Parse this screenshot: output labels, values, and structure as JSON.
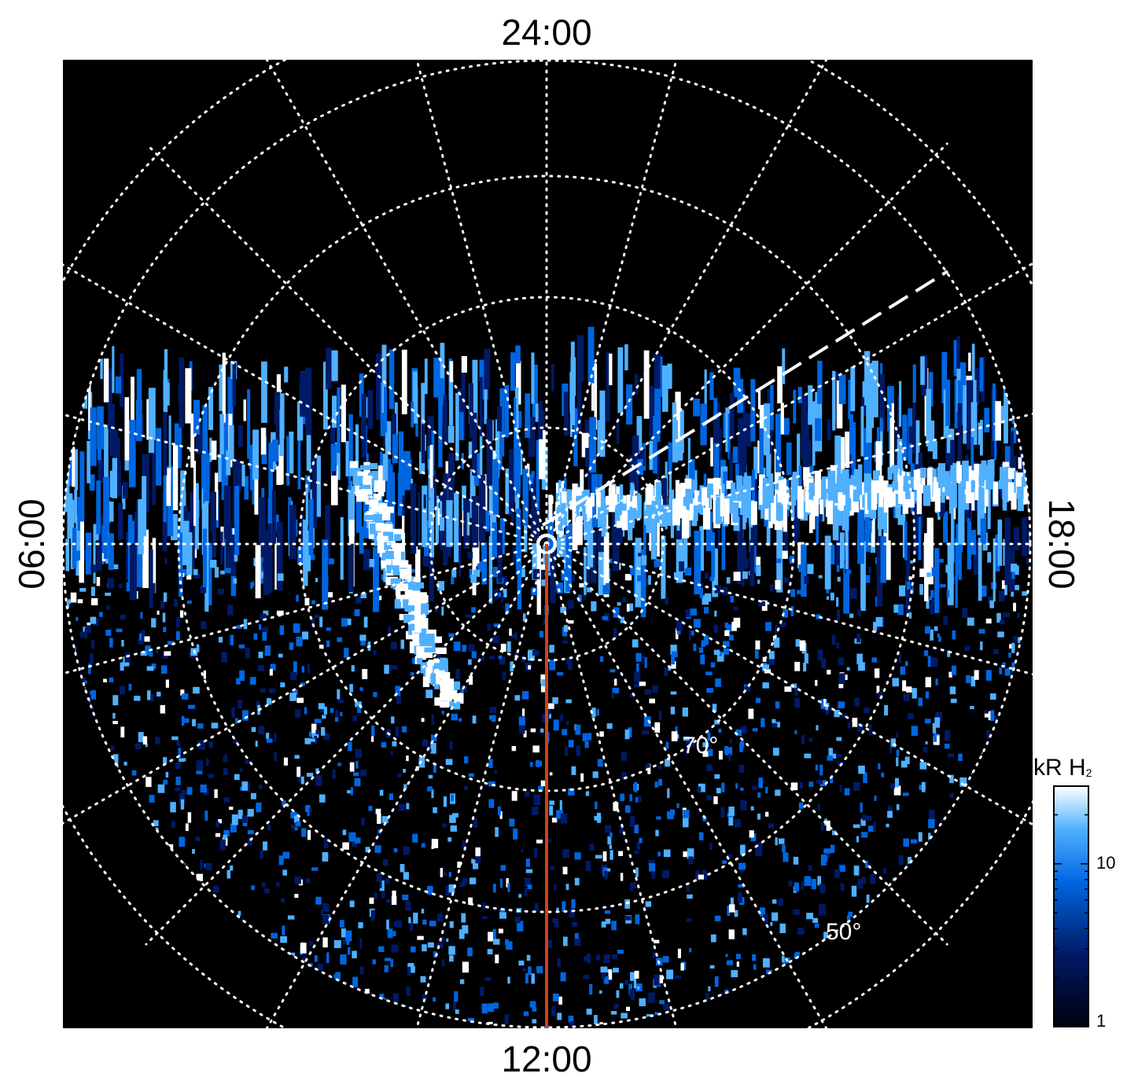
{
  "time_labels": {
    "top": "24:00",
    "bottom": "12:00",
    "left": "06:00",
    "right": "18:00"
  },
  "latitude_labels": [
    {
      "text": "70°",
      "lat": 70
    },
    {
      "text": "50°",
      "lat": 50
    }
  ],
  "colorbar": {
    "title_main": "kR H",
    "title_sub": "2",
    "ticks": [
      {
        "label": "10",
        "value": 10
      },
      {
        "label": "1",
        "value": 1
      }
    ],
    "range": [
      1,
      30
    ],
    "scale": "log",
    "colors": [
      "#000010",
      "#001a66",
      "#0066e0",
      "#4fb0ff",
      "#ffffff"
    ]
  },
  "map": {
    "projection": "polar",
    "background": "#000000",
    "grid_color": "#ffffff",
    "meridian_color": "#d0401a",
    "grid_longitude_step_hours": 1,
    "grid_latitude_rings": [
      80,
      70,
      60,
      50,
      40
    ]
  }
}
